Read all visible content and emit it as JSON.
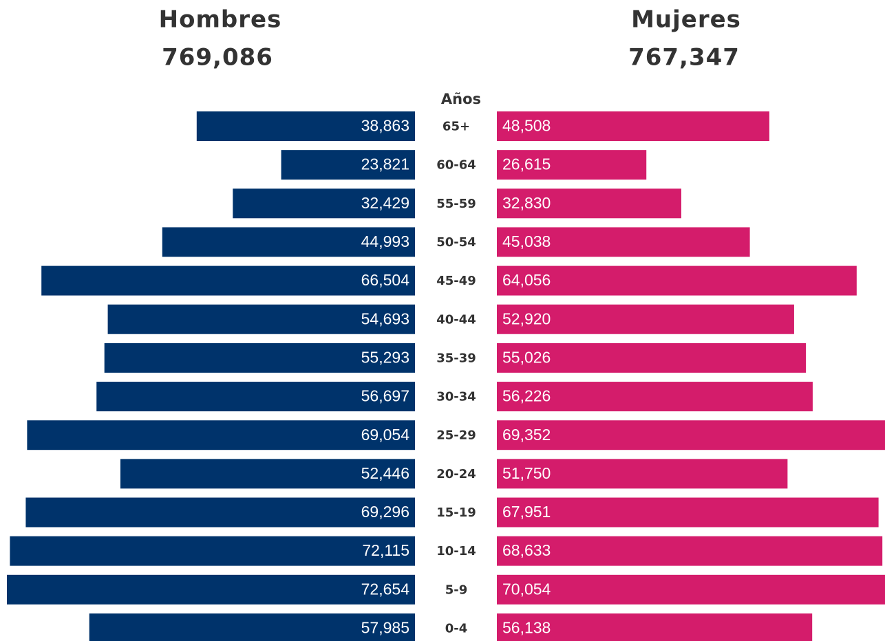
{
  "chart_data": {
    "type": "population-pyramid",
    "category_label": "Años",
    "categories": [
      "65+",
      "60-64",
      "55-59",
      "50-54",
      "45-49",
      "40-44",
      "35-39",
      "30-34",
      "25-29",
      "20-24",
      "15-19",
      "10-14",
      "5-9",
      "0-4"
    ],
    "series": [
      {
        "name": "Hombres",
        "color": "#00336b",
        "total": 769086,
        "total_label": "769,086",
        "values": [
          38863,
          23821,
          32429,
          44993,
          66504,
          54693,
          55293,
          56697,
          69054,
          52446,
          69296,
          72115,
          72654,
          57985
        ],
        "value_labels": [
          "38,863",
          "23,821",
          "32,429",
          "44,993",
          "66,504",
          "54,693",
          "55,293",
          "56,697",
          "69,054",
          "52,446",
          "69,296",
          "72,115",
          "72,654",
          "57,985"
        ]
      },
      {
        "name": "Mujeres",
        "color": "#d41c6b",
        "total": 767347,
        "total_label": "767,347",
        "values": [
          48508,
          26615,
          32830,
          45038,
          64056,
          52920,
          55026,
          56226,
          69352,
          51750,
          67951,
          68633,
          70054,
          56138
        ],
        "value_labels": [
          "48,508",
          "26,615",
          "32,830",
          "45,038",
          "64,056",
          "52,920",
          "55,026",
          "56,226",
          "69,352",
          "51,750",
          "67,951",
          "68,633",
          "70,054",
          "56,138"
        ]
      }
    ]
  }
}
